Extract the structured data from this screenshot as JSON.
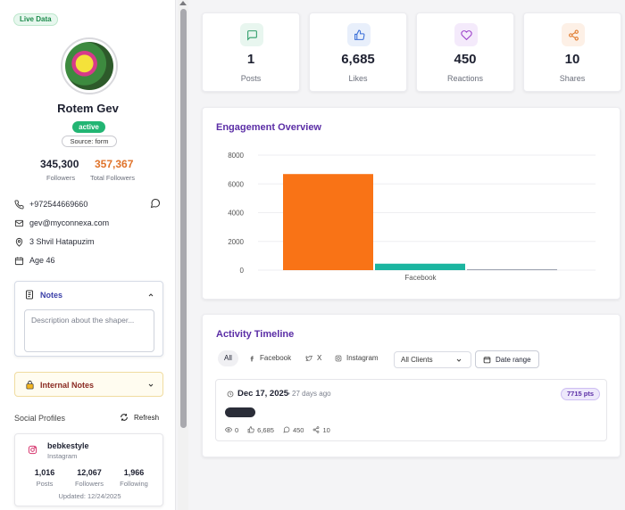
{
  "sidebar": {
    "live_badge": "Live Data",
    "name": "Rotem Gev",
    "status": "active",
    "source": "Source: form",
    "followers_value": "345,300",
    "followers_label": "Followers",
    "total_followers_value": "357,367",
    "total_followers_label": "Total Followers",
    "phone": "+972544669660",
    "email": "gev@myconnexa.com",
    "address": "3 Shvil Hatapuzim",
    "age": "Age 46",
    "notes_title": "Notes",
    "notes_placeholder": "Description about the shaper...",
    "internal_notes_title": "Internal Notes",
    "social_profiles_title": "Social Profiles",
    "refresh_label": "Refresh",
    "social_card": {
      "handle": "bebkestyle",
      "platform": "Instagram",
      "posts_value": "1,016",
      "posts_label": "Posts",
      "followers_value": "12,067",
      "followers_label": "Followers",
      "following_value": "1,966",
      "following_label": "Following",
      "updated": "Updated: 12/24/2025"
    }
  },
  "kpis": [
    {
      "value": "1",
      "label": "Posts",
      "icon": "message-square-icon",
      "color": "#2f9e6a",
      "bg": "#e8f6ef"
    },
    {
      "value": "6,685",
      "label": "Likes",
      "icon": "thumbs-up-icon",
      "color": "#3a6fd8",
      "bg": "#e8effb"
    },
    {
      "value": "450",
      "label": "Reactions",
      "icon": "heart-icon",
      "color": "#9b3fc9",
      "bg": "#f4eafb"
    },
    {
      "value": "10",
      "label": "Shares",
      "icon": "share-icon",
      "color": "#e07a2c",
      "bg": "#fdf0e6"
    }
  ],
  "engagement": {
    "title": "Engagement Overview"
  },
  "chart_data": {
    "type": "bar",
    "title": "Engagement Overview",
    "categories": [
      "Facebook"
    ],
    "series": [
      {
        "values": [
          6685
        ],
        "color": "#f97316"
      },
      {
        "values": [
          450
        ],
        "color": "#1bb5a0"
      },
      {
        "values": [
          10
        ],
        "color": "#9aa0ae"
      }
    ],
    "ylim": [
      0,
      8000
    ],
    "yticks": [
      0,
      2000,
      4000,
      6000,
      8000
    ],
    "grid": true
  },
  "timeline": {
    "title": "Activity Timeline",
    "tabs": [
      "All",
      "Facebook",
      "X",
      "Instagram"
    ],
    "client_select": "All Clients",
    "date_range": "Date range",
    "item": {
      "date": "Dec 17, 2025",
      "ago": "• 27 days ago",
      "points": "7715 pts",
      "views": "0",
      "likes": "6,685",
      "comments": "450",
      "shares": "10"
    }
  }
}
